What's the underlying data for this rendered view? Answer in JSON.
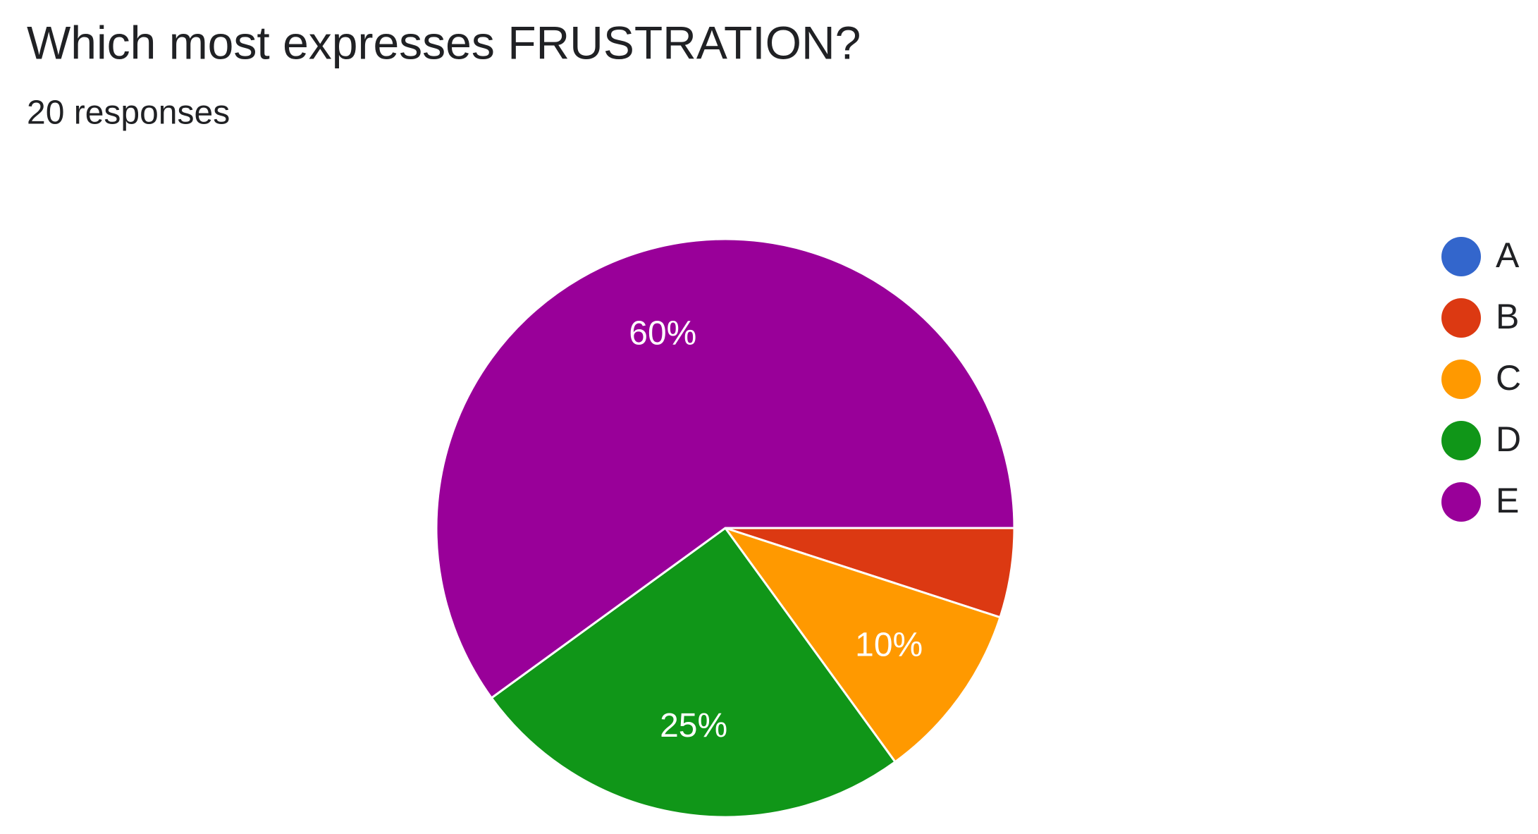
{
  "chart_data": {
    "type": "pie",
    "title": "Which most expresses FRUSTRATION?",
    "subtitle": "20 responses",
    "categories": [
      "A",
      "B",
      "C",
      "D",
      "E"
    ],
    "values": [
      0,
      5,
      10,
      25,
      60
    ],
    "value_labels": [
      null,
      null,
      "10%",
      "25%",
      "60%"
    ],
    "colors": [
      "#3366cc",
      "#dc3912",
      "#ff9900",
      "#109618",
      "#990099"
    ],
    "legend": "right"
  }
}
